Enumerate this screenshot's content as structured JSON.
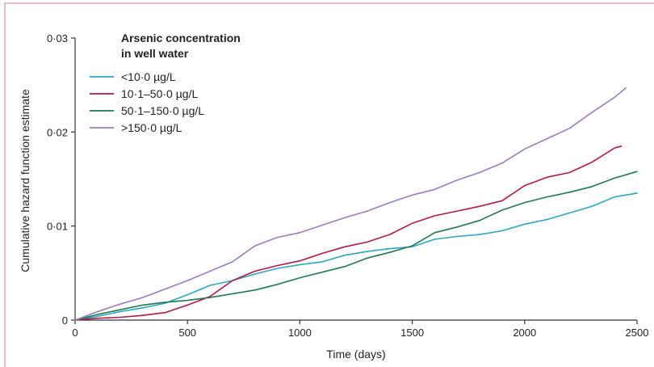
{
  "chart_data": {
    "type": "line",
    "xlabel": "Time (days)",
    "ylabel": "Cumulative hazard function estimate",
    "xlim": [
      0,
      2500
    ],
    "ylim": [
      0,
      0.03
    ],
    "x_ticks": [
      0,
      500,
      1000,
      1500,
      2000,
      2500
    ],
    "x_tick_labels": [
      "0",
      "500",
      "1000",
      "1500",
      "2000",
      "2500"
    ],
    "y_ticks": [
      0,
      0.01,
      0.02,
      0.03
    ],
    "y_tick_labels": [
      "0",
      "0·01",
      "0·02",
      "0·03"
    ],
    "legend": {
      "title_lines": [
        "Arsenic concentration",
        "in well water"
      ],
      "placement": "top-left"
    },
    "grid": false,
    "series": [
      {
        "name": "<10·0 µg/L",
        "color": "#2aa7c4",
        "points": [
          [
            0,
            0
          ],
          [
            100,
            0.0004
          ],
          [
            200,
            0.0009
          ],
          [
            300,
            0.0013
          ],
          [
            400,
            0.0018
          ],
          [
            500,
            0.0027
          ],
          [
            600,
            0.0037
          ],
          [
            700,
            0.0042
          ],
          [
            800,
            0.0049
          ],
          [
            900,
            0.0055
          ],
          [
            1000,
            0.0059
          ],
          [
            1100,
            0.0062
          ],
          [
            1200,
            0.0069
          ],
          [
            1300,
            0.0073
          ],
          [
            1400,
            0.0076
          ],
          [
            1500,
            0.0078
          ],
          [
            1600,
            0.0086
          ],
          [
            1700,
            0.0089
          ],
          [
            1800,
            0.0091
          ],
          [
            1900,
            0.0095
          ],
          [
            2000,
            0.0102
          ],
          [
            2100,
            0.0107
          ],
          [
            2200,
            0.0114
          ],
          [
            2300,
            0.0121
          ],
          [
            2400,
            0.0131
          ],
          [
            2500,
            0.0135
          ]
        ]
      },
      {
        "name": "10·1–50·0 µg/L",
        "color": "#b5174a",
        "points": [
          [
            0,
            0
          ],
          [
            100,
            0.0002
          ],
          [
            200,
            0.0003
          ],
          [
            300,
            0.0005
          ],
          [
            400,
            0.0008
          ],
          [
            500,
            0.0016
          ],
          [
            600,
            0.0025
          ],
          [
            700,
            0.0042
          ],
          [
            800,
            0.0052
          ],
          [
            900,
            0.0058
          ],
          [
            1000,
            0.0063
          ],
          [
            1100,
            0.0071
          ],
          [
            1200,
            0.0078
          ],
          [
            1300,
            0.0083
          ],
          [
            1400,
            0.0091
          ],
          [
            1500,
            0.0103
          ],
          [
            1600,
            0.0111
          ],
          [
            1700,
            0.0116
          ],
          [
            1800,
            0.0121
          ],
          [
            1900,
            0.0127
          ],
          [
            2000,
            0.0143
          ],
          [
            2100,
            0.0152
          ],
          [
            2200,
            0.0157
          ],
          [
            2300,
            0.0168
          ],
          [
            2400,
            0.0183
          ],
          [
            2430,
            0.0185
          ]
        ]
      },
      {
        "name": "50·1–150·0 µg/L",
        "color": "#1f7a52",
        "points": [
          [
            0,
            0
          ],
          [
            100,
            0.0006
          ],
          [
            200,
            0.0011
          ],
          [
            300,
            0.0016
          ],
          [
            400,
            0.0019
          ],
          [
            500,
            0.0021
          ],
          [
            600,
            0.0024
          ],
          [
            700,
            0.0028
          ],
          [
            800,
            0.0032
          ],
          [
            900,
            0.0038
          ],
          [
            1000,
            0.0045
          ],
          [
            1100,
            0.0051
          ],
          [
            1200,
            0.0057
          ],
          [
            1300,
            0.0066
          ],
          [
            1400,
            0.0072
          ],
          [
            1500,
            0.0079
          ],
          [
            1600,
            0.0093
          ],
          [
            1700,
            0.0099
          ],
          [
            1800,
            0.0106
          ],
          [
            1900,
            0.0117
          ],
          [
            2000,
            0.0125
          ],
          [
            2100,
            0.0131
          ],
          [
            2200,
            0.0136
          ],
          [
            2300,
            0.0142
          ],
          [
            2400,
            0.0151
          ],
          [
            2500,
            0.0158
          ]
        ]
      },
      {
        "name": ">150·0 µg/L",
        "color": "#9b7cc0",
        "points": [
          [
            0,
            0
          ],
          [
            100,
            0.0009
          ],
          [
            200,
            0.0017
          ],
          [
            300,
            0.0024
          ],
          [
            400,
            0.0033
          ],
          [
            500,
            0.0042
          ],
          [
            600,
            0.0052
          ],
          [
            700,
            0.0062
          ],
          [
            800,
            0.0079
          ],
          [
            900,
            0.0088
          ],
          [
            1000,
            0.0093
          ],
          [
            1100,
            0.0101
          ],
          [
            1200,
            0.0109
          ],
          [
            1300,
            0.0116
          ],
          [
            1400,
            0.0125
          ],
          [
            1500,
            0.0133
          ],
          [
            1600,
            0.0139
          ],
          [
            1700,
            0.0149
          ],
          [
            1800,
            0.0157
          ],
          [
            1900,
            0.0167
          ],
          [
            2000,
            0.0182
          ],
          [
            2100,
            0.0193
          ],
          [
            2200,
            0.0204
          ],
          [
            2300,
            0.0221
          ],
          [
            2400,
            0.0237
          ],
          [
            2450,
            0.0247
          ]
        ]
      }
    ]
  }
}
